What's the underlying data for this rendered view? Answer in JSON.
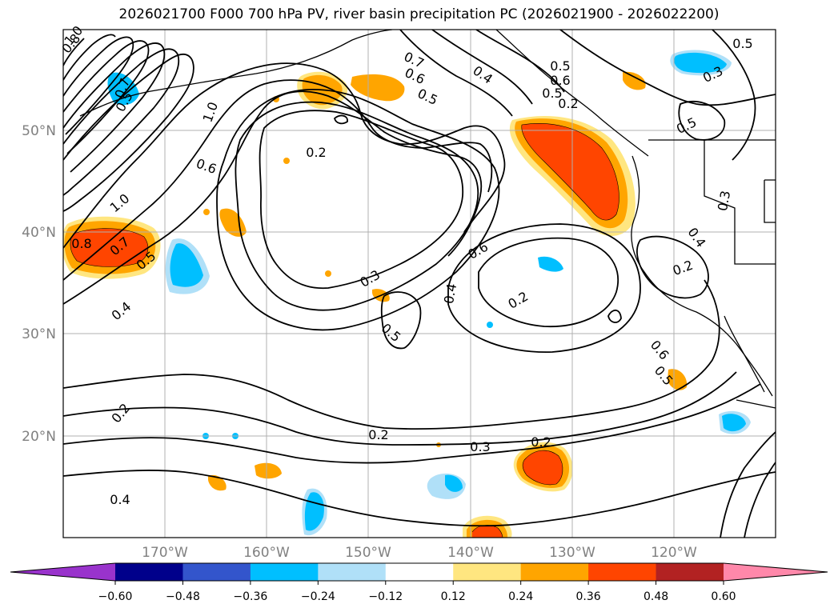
{
  "title": "2026021700 F000 700 hPa PV, river basin precipitation PC (2026021900 - 2026022200)",
  "map": {
    "lat_labels": [
      "50°N",
      "40°N",
      "30°N",
      "20°N"
    ],
    "lon_labels": [
      "170°W",
      "160°W",
      "150°W",
      "140°W",
      "130°W",
      "120°W"
    ],
    "contour_labels": [
      "1.0",
      "0.8",
      "0.7",
      "0.5",
      "1.0",
      "0.6",
      "1.0",
      "0.8",
      "0.7",
      "0.5",
      "0.4",
      "0.2",
      "0.2",
      "0.4",
      "0.7",
      "0.6",
      "0.5",
      "0.4",
      "0.5",
      "0.6",
      "0.5",
      "0.2",
      "0.5",
      "0.6",
      "0.4",
      "0.3",
      "0.2",
      "0.3",
      "0.5",
      "0.5",
      "0.6",
      "0.5",
      "0.4",
      "0.2",
      "0.3",
      "0.2",
      "0.2",
      "0.3"
    ]
  },
  "colorbar": {
    "ticks": [
      "−0.60",
      "−0.48",
      "−0.36",
      "−0.24",
      "−0.12",
      "0.12",
      "0.24",
      "0.36",
      "0.48",
      "0.60"
    ],
    "colors": [
      "#9933cc",
      "#00008b",
      "#3355cc",
      "#00bfff",
      "#b0e0f8",
      "#ffffff",
      "#ffe680",
      "#ffa500",
      "#ff4500",
      "#b22222",
      "#ff88aa"
    ]
  },
  "colors": {
    "frame": "#000000",
    "grid": "#b0b0b0",
    "axis_label": "#808080",
    "shade_light_yellow": "#ffe680",
    "shade_orange": "#ffa500",
    "shade_red_orange": "#ff4500",
    "shade_light_blue": "#b0e0f8",
    "shade_deep_sky_blue": "#00bfff",
    "shade_blue": "#3355cc"
  }
}
